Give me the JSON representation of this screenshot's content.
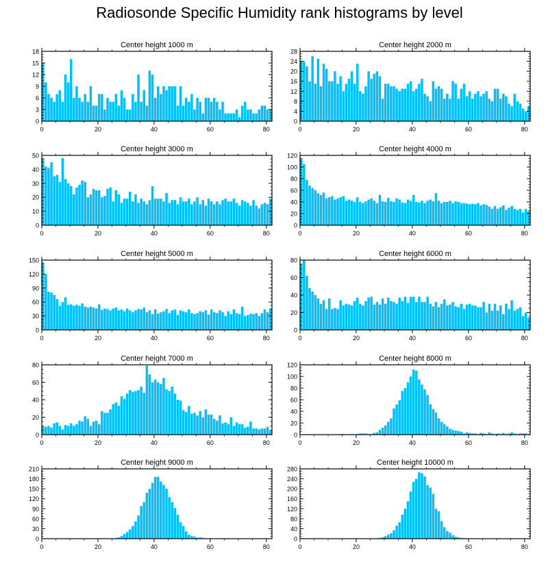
{
  "title": "Radiosonde Specific Humidity rank histograms by level",
  "bar_color": "#00bfff",
  "chart_data": [
    {
      "type": "bar",
      "title": "Center height 1000 m",
      "xlim": [
        0,
        82
      ],
      "ylim": [
        0,
        18
      ],
      "yticks": [
        0,
        3,
        6,
        9,
        12,
        15,
        18
      ],
      "xticks": [
        0,
        20,
        40,
        60,
        80
      ],
      "values": [
        15,
        10,
        7,
        6,
        5,
        7,
        8,
        5,
        12,
        10,
        16,
        6,
        9,
        6,
        5,
        7,
        5,
        9,
        4,
        4,
        7,
        7,
        3,
        6,
        5,
        5,
        7,
        4,
        8,
        6,
        3,
        3,
        7,
        5,
        12,
        5,
        8,
        4,
        13,
        12,
        6,
        9,
        7,
        9,
        8,
        9,
        9,
        9,
        4,
        9,
        4,
        6,
        5,
        7,
        3,
        6,
        5,
        2,
        6,
        6,
        5,
        6,
        5,
        3,
        5,
        2,
        2,
        2,
        2,
        3,
        1,
        4,
        5,
        3,
        3,
        2,
        2,
        3,
        4,
        4,
        3,
        3
      ]
    },
    {
      "type": "bar",
      "title": "Center height 2000 m",
      "xlim": [
        0,
        82
      ],
      "ylim": [
        0,
        28
      ],
      "yticks": [
        0,
        4,
        8,
        12,
        16,
        20,
        24,
        28
      ],
      "xticks": [
        0,
        20,
        40,
        60,
        80
      ],
      "values": [
        24,
        24,
        22,
        16,
        26,
        15,
        25,
        14,
        23,
        21,
        16,
        16,
        20,
        15,
        18,
        12,
        15,
        17,
        20,
        15,
        23,
        12,
        11,
        14,
        20,
        17,
        19,
        20,
        18,
        9,
        15,
        15,
        14,
        14,
        13,
        12,
        13,
        13,
        15,
        16,
        12,
        13,
        15,
        17,
        11,
        10,
        8,
        16,
        13,
        14,
        13,
        9,
        11,
        9,
        16,
        15,
        9,
        13,
        15,
        10,
        12,
        9,
        11,
        12,
        10,
        11,
        12,
        9,
        8,
        13,
        13,
        9,
        11,
        10,
        7,
        6,
        11,
        8,
        7,
        5,
        4,
        6
      ]
    },
    {
      "type": "bar",
      "title": "Center height 3000 m",
      "xlim": [
        0,
        82
      ],
      "ylim": [
        0,
        50
      ],
      "yticks": [
        0,
        10,
        20,
        30,
        40,
        50
      ],
      "xticks": [
        0,
        20,
        40,
        60,
        80
      ],
      "values": [
        48,
        42,
        41,
        45,
        35,
        36,
        31,
        48,
        33,
        30,
        28,
        22,
        27,
        29,
        32,
        31,
        20,
        22,
        26,
        25,
        25,
        20,
        21,
        26,
        27,
        17,
        25,
        22,
        16,
        19,
        19,
        24,
        17,
        22,
        16,
        19,
        17,
        15,
        18,
        28,
        19,
        19,
        19,
        17,
        23,
        16,
        18,
        18,
        15,
        20,
        17,
        17,
        19,
        15,
        17,
        20,
        15,
        18,
        14,
        19,
        17,
        15,
        17,
        15,
        18,
        19,
        17,
        17,
        19,
        16,
        14,
        18,
        17,
        16,
        14,
        18,
        14,
        12,
        15,
        16,
        15,
        19
      ]
    },
    {
      "type": "bar",
      "title": "Center height 4000 m",
      "xlim": [
        0,
        82
      ],
      "ylim": [
        0,
        120
      ],
      "yticks": [
        0,
        20,
        40,
        60,
        80,
        100,
        120
      ],
      "xticks": [
        0,
        20,
        40,
        60,
        80
      ],
      "values": [
        115,
        105,
        78,
        68,
        64,
        60,
        55,
        52,
        56,
        46,
        48,
        50,
        44,
        46,
        48,
        50,
        42,
        44,
        42,
        40,
        48,
        40,
        38,
        41,
        44,
        46,
        42,
        38,
        52,
        41,
        40,
        47,
        41,
        40,
        46,
        44,
        39,
        38,
        44,
        42,
        52,
        40,
        39,
        42,
        38,
        42,
        44,
        41,
        55,
        42,
        38,
        40,
        40,
        42,
        38,
        41,
        40,
        38,
        38,
        37,
        36,
        37,
        36,
        38,
        34,
        36,
        35,
        32,
        28,
        33,
        28,
        31,
        34,
        26,
        30,
        33,
        28,
        26,
        28,
        22,
        28,
        24
      ]
    },
    {
      "type": "bar",
      "title": "Center height 5000 m",
      "xlim": [
        0,
        82
      ],
      "ylim": [
        0,
        150
      ],
      "yticks": [
        0,
        30,
        60,
        90,
        120,
        150
      ],
      "xticks": [
        0,
        20,
        40,
        60,
        80
      ],
      "values": [
        145,
        120,
        82,
        80,
        75,
        66,
        52,
        60,
        70,
        54,
        55,
        52,
        54,
        52,
        57,
        50,
        48,
        50,
        48,
        46,
        55,
        43,
        46,
        45,
        42,
        46,
        48,
        42,
        44,
        40,
        46,
        42,
        38,
        42,
        45,
        44,
        48,
        38,
        42,
        34,
        44,
        35,
        38,
        40,
        45,
        36,
        42,
        44,
        32,
        42,
        40,
        38,
        44,
        36,
        34,
        36,
        40,
        38,
        42,
        33,
        44,
        38,
        36,
        42,
        38,
        30,
        40,
        34,
        44,
        36,
        34,
        50,
        30,
        32,
        35,
        34,
        36,
        30,
        36,
        44,
        38,
        46
      ]
    },
    {
      "type": "bar",
      "title": "Center height 6000 m",
      "xlim": [
        0,
        82
      ],
      "ylim": [
        0,
        80
      ],
      "yticks": [
        0,
        20,
        40,
        60,
        80
      ],
      "xticks": [
        0,
        20,
        40,
        60,
        80
      ],
      "values": [
        76,
        80,
        62,
        48,
        44,
        40,
        36,
        30,
        34,
        24,
        36,
        24,
        25,
        24,
        34,
        28,
        30,
        29,
        28,
        33,
        37,
        30,
        28,
        33,
        37,
        38,
        29,
        32,
        29,
        36,
        30,
        37,
        33,
        32,
        30,
        37,
        33,
        38,
        31,
        38,
        38,
        32,
        38,
        32,
        32,
        38,
        30,
        27,
        32,
        26,
        30,
        35,
        28,
        29,
        32,
        27,
        26,
        30,
        24,
        29,
        30,
        28,
        28,
        26,
        26,
        32,
        20,
        30,
        22,
        30,
        22,
        28,
        18,
        30,
        24,
        34,
        22,
        24,
        26,
        16,
        20,
        14
      ]
    },
    {
      "type": "bar",
      "title": "Center height 7000 m",
      "xlim": [
        0,
        82
      ],
      "ylim": [
        0,
        80
      ],
      "yticks": [
        0,
        20,
        40,
        60,
        80
      ],
      "xticks": [
        0,
        20,
        40,
        60,
        80
      ],
      "values": [
        10,
        9,
        10,
        8,
        13,
        14,
        10,
        6,
        11,
        10,
        13,
        10,
        12,
        16,
        15,
        21,
        18,
        10,
        15,
        16,
        12,
        27,
        25,
        25,
        29,
        35,
        37,
        33,
        44,
        41,
        47,
        51,
        49,
        50,
        51,
        55,
        48,
        79,
        69,
        60,
        63,
        60,
        58,
        65,
        52,
        50,
        55,
        47,
        40,
        39,
        28,
        26,
        33,
        24,
        25,
        22,
        27,
        20,
        29,
        23,
        23,
        18,
        16,
        22,
        13,
        14,
        12,
        20,
        10,
        14,
        12,
        12,
        8,
        9,
        15,
        7,
        7,
        6,
        7,
        7,
        9,
        5
      ]
    },
    {
      "type": "bar",
      "title": "Center height 8000 m",
      "xlim": [
        0,
        82
      ],
      "ylim": [
        0,
        120
      ],
      "yticks": [
        0,
        20,
        40,
        60,
        80,
        100,
        120
      ],
      "xticks": [
        0,
        20,
        40,
        60,
        80
      ],
      "values": [
        0,
        0,
        0,
        0,
        0,
        0,
        0,
        0,
        0,
        0,
        0,
        0,
        0,
        0,
        1,
        0,
        0,
        0,
        1,
        0,
        1,
        2,
        2,
        2,
        1,
        1,
        3,
        4,
        8,
        12,
        16,
        22,
        28,
        45,
        52,
        59,
        75,
        80,
        90,
        100,
        112,
        110,
        95,
        86,
        78,
        68,
        52,
        44,
        38,
        28,
        22,
        18,
        14,
        10,
        8,
        7,
        6,
        5,
        2,
        4,
        3,
        2,
        2,
        1,
        3,
        2,
        1,
        4,
        2,
        1,
        2,
        1,
        3,
        1,
        2,
        4,
        2,
        1,
        2,
        2,
        2,
        1
      ]
    },
    {
      "type": "bar",
      "title": "Center height 9000 m",
      "xlim": [
        0,
        82
      ],
      "ylim": [
        0,
        210
      ],
      "yticks": [
        0,
        30,
        60,
        90,
        120,
        150,
        180,
        210
      ],
      "xticks": [
        0,
        20,
        40,
        60,
        80
      ],
      "values": [
        0,
        0,
        0,
        0,
        0,
        0,
        0,
        0,
        0,
        0,
        0,
        0,
        0,
        0,
        0,
        0,
        0,
        0,
        0,
        0,
        0,
        0,
        0,
        0,
        0,
        0,
        2,
        4,
        8,
        14,
        20,
        28,
        38,
        52,
        70,
        98,
        110,
        138,
        150,
        168,
        186,
        186,
        172,
        162,
        150,
        125,
        110,
        92,
        72,
        50,
        38,
        22,
        12,
        8,
        6,
        3,
        4,
        2,
        1,
        1,
        1,
        0,
        0,
        0,
        0,
        0,
        0,
        0,
        0,
        0,
        0,
        0,
        0,
        0,
        0,
        0,
        0,
        0,
        0,
        0,
        0,
        0
      ]
    },
    {
      "type": "bar",
      "title": "Center height 10000 m",
      "xlim": [
        0,
        82
      ],
      "ylim": [
        0,
        280
      ],
      "yticks": [
        0,
        40,
        80,
        120,
        160,
        200,
        240,
        280
      ],
      "xticks": [
        0,
        20,
        40,
        60,
        80
      ],
      "values": [
        0,
        0,
        0,
        0,
        0,
        0,
        0,
        0,
        0,
        0,
        0,
        0,
        0,
        0,
        0,
        0,
        0,
        0,
        0,
        0,
        0,
        0,
        0,
        0,
        0,
        0,
        0,
        2,
        3,
        6,
        10,
        16,
        22,
        34,
        52,
        66,
        96,
        120,
        150,
        190,
        228,
        240,
        266,
        262,
        250,
        215,
        205,
        180,
        120,
        110,
        70,
        46,
        30,
        24,
        14,
        8,
        5,
        3,
        2,
        1,
        1,
        0,
        0,
        0,
        0,
        0,
        0,
        0,
        0,
        0,
        0,
        0,
        0,
        0,
        0,
        0,
        0,
        0,
        0,
        0,
        0,
        0
      ]
    }
  ]
}
